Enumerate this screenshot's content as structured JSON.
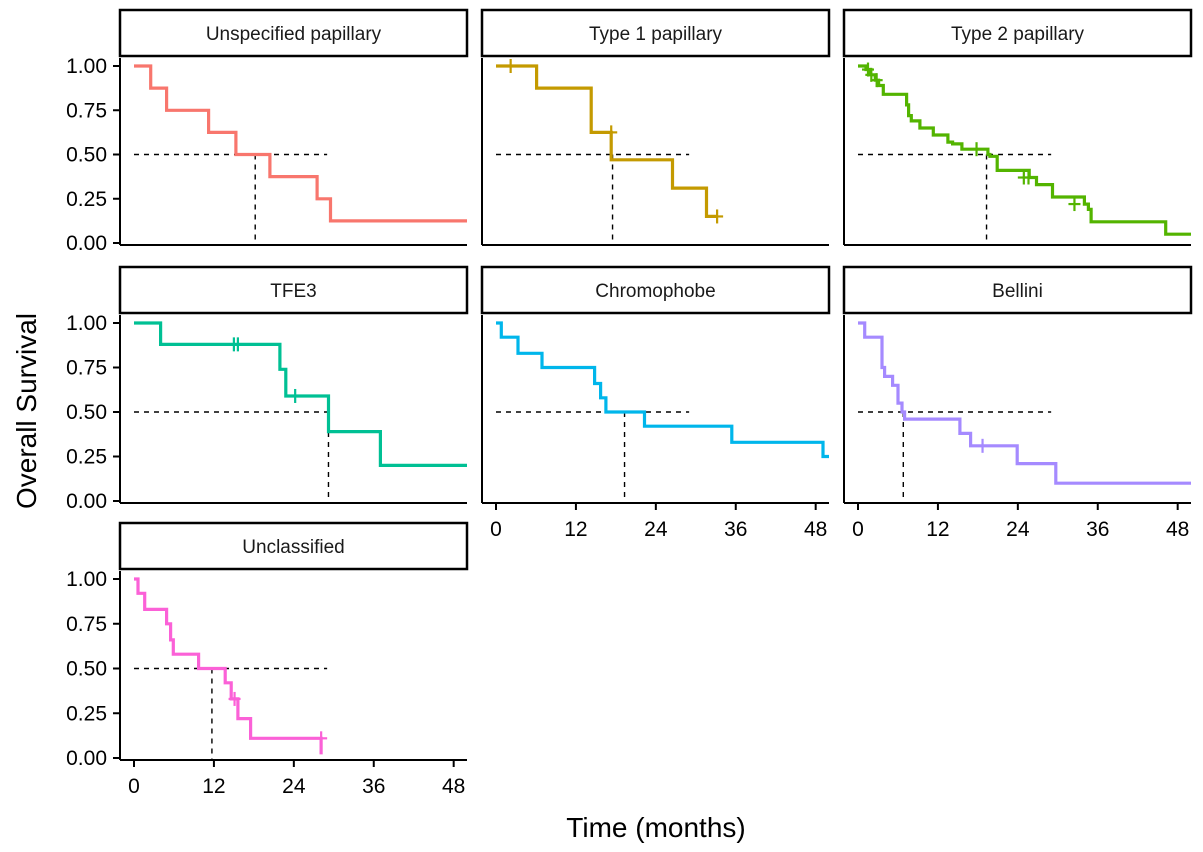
{
  "chart_data": {
    "type": "line",
    "subtype": "kaplan-meier survival curves, faceted",
    "xlabel": "Time (months)",
    "ylabel": "Overall Survival",
    "xlim": [
      0,
      50
    ],
    "ylim": [
      0,
      1
    ],
    "x_ticks": [
      0,
      12,
      24,
      36,
      48
    ],
    "x_tick_labels": [
      "0",
      "12",
      "24",
      "36",
      "48"
    ],
    "y_ticks": [
      0,
      0.25,
      0.5,
      0.75,
      1
    ],
    "y_tick_labels": [
      "0.00",
      "0.25",
      "0.50",
      "0.75",
      "1.00"
    ],
    "grid": false,
    "legend": "none",
    "median_reference_line": 0.5,
    "series": [
      {
        "name": "Unspecified papillary",
        "color": "#F8766D",
        "steps": [
          [
            0,
            1.0
          ],
          [
            2.5,
            0.875
          ],
          [
            4.9,
            0.75
          ],
          [
            11.2,
            0.625
          ],
          [
            15.3,
            0.5
          ],
          [
            20.4,
            0.375
          ],
          [
            27.5,
            0.25
          ],
          [
            29.5,
            0.125
          ],
          [
            50,
            0.125
          ]
        ],
        "censor": [],
        "median": 18.2
      },
      {
        "name": "Type 1 papillary",
        "color": "#C49A00",
        "steps": [
          [
            0,
            1.0
          ],
          [
            6.1,
            0.875
          ],
          [
            14.3,
            0.625
          ],
          [
            17.3,
            0.47
          ],
          [
            26.5,
            0.31
          ],
          [
            31.6,
            0.15
          ],
          [
            33.2,
            0.15
          ]
        ],
        "censor": [
          [
            2.2,
            1.0
          ],
          [
            17.3,
            0.625
          ],
          [
            33.2,
            0.15
          ]
        ],
        "median": 17.5
      },
      {
        "name": "Type 2 papillary",
        "color": "#53B400",
        "steps": [
          [
            0,
            1.0
          ],
          [
            1.2,
            0.98
          ],
          [
            1.8,
            0.95
          ],
          [
            2.6,
            0.92
          ],
          [
            3.1,
            0.89
          ],
          [
            3.8,
            0.84
          ],
          [
            7.3,
            0.78
          ],
          [
            7.6,
            0.72
          ],
          [
            8.0,
            0.69
          ],
          [
            9.3,
            0.65
          ],
          [
            11.3,
            0.61
          ],
          [
            13.5,
            0.57
          ],
          [
            14.2,
            0.56
          ],
          [
            15.6,
            0.53
          ],
          [
            19.5,
            0.5
          ],
          [
            19.8,
            0.49
          ],
          [
            20.9,
            0.41
          ],
          [
            25.7,
            0.37
          ],
          [
            26.8,
            0.33
          ],
          [
            29.2,
            0.26
          ],
          [
            34.0,
            0.22
          ],
          [
            34.6,
            0.19
          ],
          [
            35.0,
            0.12
          ],
          [
            46.2,
            0.05
          ],
          [
            50,
            0.05
          ]
        ],
        "censor": [
          [
            1.5,
            0.98
          ],
          [
            2.0,
            0.95
          ],
          [
            2.8,
            0.92
          ],
          [
            17.8,
            0.53
          ],
          [
            24.9,
            0.37
          ],
          [
            25.6,
            0.37
          ],
          [
            32.5,
            0.22
          ]
        ],
        "median": 19.3
      },
      {
        "name": "TFE3",
        "color": "#00C094",
        "steps": [
          [
            0,
            1.0
          ],
          [
            4.0,
            0.88
          ],
          [
            21.9,
            0.74
          ],
          [
            22.8,
            0.59
          ],
          [
            29.2,
            0.39
          ],
          [
            37.0,
            0.2
          ],
          [
            50,
            0.2
          ]
        ],
        "censor": [
          [
            15.0,
            0.88
          ],
          [
            15.6,
            0.88
          ],
          [
            24.2,
            0.59
          ]
        ],
        "median": 29.2
      },
      {
        "name": "Chromophobe",
        "color": "#00B6EB",
        "steps": [
          [
            0,
            1.0
          ],
          [
            0.8,
            0.92
          ],
          [
            3.3,
            0.83
          ],
          [
            6.9,
            0.75
          ],
          [
            14.8,
            0.66
          ],
          [
            15.7,
            0.58
          ],
          [
            16.5,
            0.5
          ],
          [
            22.3,
            0.42
          ],
          [
            35.4,
            0.33
          ],
          [
            49.1,
            0.25
          ],
          [
            50,
            0.25
          ]
        ],
        "censor": [],
        "median": 19.3
      },
      {
        "name": "Bellini",
        "color": "#A58AFF",
        "steps": [
          [
            0,
            1.0
          ],
          [
            1.0,
            0.92
          ],
          [
            3.6,
            0.75
          ],
          [
            4.0,
            0.7
          ],
          [
            5.2,
            0.65
          ],
          [
            6.0,
            0.55
          ],
          [
            6.6,
            0.5
          ],
          [
            7.0,
            0.46
          ],
          [
            15.3,
            0.38
          ],
          [
            16.9,
            0.31
          ],
          [
            23.9,
            0.21
          ],
          [
            29.7,
            0.1
          ],
          [
            50,
            0.1
          ]
        ],
        "censor": [
          [
            18.7,
            0.31
          ]
        ],
        "median": 6.8
      },
      {
        "name": "Unclassified",
        "color": "#FB61D7",
        "steps": [
          [
            0,
            1.0
          ],
          [
            0.6,
            0.92
          ],
          [
            1.6,
            0.83
          ],
          [
            4.9,
            0.75
          ],
          [
            5.5,
            0.66
          ],
          [
            5.9,
            0.58
          ],
          [
            9.7,
            0.5
          ],
          [
            13.7,
            0.42
          ],
          [
            14.6,
            0.33
          ],
          [
            15.6,
            0.22
          ],
          [
            17.5,
            0.11
          ],
          [
            28.1,
            0.02
          ]
        ],
        "censor": [
          [
            15.1,
            0.33
          ],
          [
            28.1,
            0.11
          ]
        ],
        "median": 11.7
      }
    ]
  }
}
